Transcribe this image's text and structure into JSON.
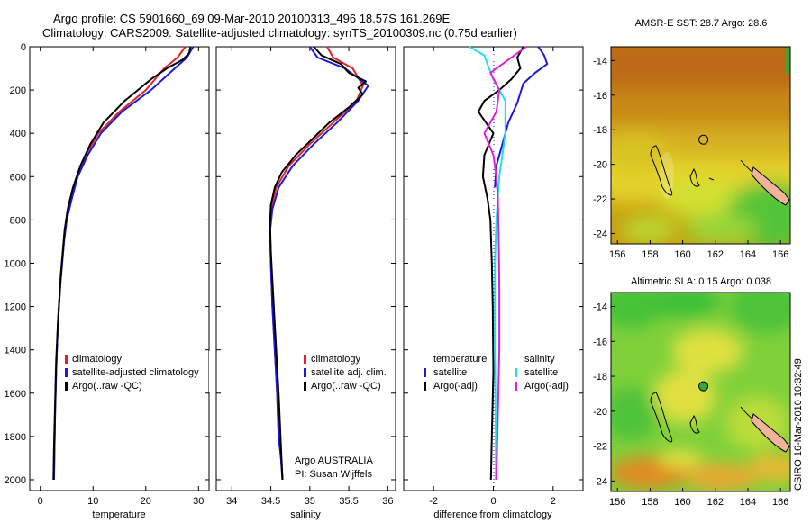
{
  "header": {
    "line1": "Argo profile: CS 5901660_69 09-Mar-2010 20100313_496 18.57S 161.269E",
    "line2": "Climatology: CARS2009. Satellite-adjusted climatology: synTS_20100309.nc (0.75d earlier)"
  },
  "side_label": "CSIRO 16-Mar-2010 10:32:49",
  "colors": {
    "climatology": "#e82020",
    "satellite": "#1a1adc",
    "argo": "#000000",
    "cyan": "#22e0e0",
    "magenta": "#e020e0"
  },
  "chart_data": [
    {
      "id": "temperature",
      "type": "line",
      "xlabel": "temperature",
      "ylabel": "",
      "title": "",
      "xlim": [
        -2,
        32
      ],
      "ylim": [
        2050,
        0
      ],
      "grid": false,
      "xticks": [
        0,
        10,
        20,
        30
      ],
      "xtick_labels": [
        "0",
        "10",
        "20",
        "30"
      ],
      "yticks": [
        0,
        200,
        400,
        600,
        800,
        1000,
        1200,
        1400,
        1600,
        1800,
        2000
      ],
      "ytick_labels": [
        "0",
        "200",
        "400",
        "600",
        "800",
        "1000",
        "1200",
        "1400",
        "1600",
        "1800",
        "2000"
      ],
      "legend": {
        "position": "lower-right",
        "entries": [
          "climatology",
          "satellite-adjusted climatology",
          "Argo(..raw -QC)"
        ]
      },
      "series": [
        {
          "name": "climatology",
          "color": "#e82020",
          "x": [
            27.5,
            26.0,
            23.5,
            20.0,
            15.0,
            11.0,
            8.6,
            7.0,
            6.0,
            5.0,
            4.5,
            3.8,
            3.3,
            3.0,
            2.8,
            2.6
          ],
          "y": [
            0,
            50,
            100,
            200,
            300,
            400,
            500,
            600,
            700,
            800,
            900,
            1100,
            1300,
            1500,
            1700,
            2000
          ]
        },
        {
          "name": "satellite-adjusted climatology",
          "color": "#1a1adc",
          "x": [
            29.0,
            27.8,
            25.5,
            21.0,
            15.5,
            11.5,
            9.0,
            7.1,
            6.0,
            5.0,
            4.5,
            3.8,
            3.3,
            3.0,
            2.8,
            2.6
          ],
          "y": [
            0,
            50,
            100,
            200,
            300,
            400,
            500,
            600,
            700,
            800,
            900,
            1100,
            1300,
            1500,
            1700,
            2000
          ]
        },
        {
          "name": "Argo(..raw -QC)",
          "color": "#000000",
          "x": [
            28.5,
            28.2,
            27.0,
            24.0,
            21.0,
            16.0,
            12.0,
            9.5,
            7.6,
            6.2,
            5.2,
            4.6,
            3.9,
            3.4,
            3.0,
            2.8,
            2.6,
            2.5
          ],
          "y": [
            0,
            30,
            60,
            100,
            150,
            250,
            350,
            450,
            550,
            650,
            750,
            850,
            1050,
            1250,
            1450,
            1650,
            1850,
            2000
          ]
        }
      ]
    },
    {
      "id": "salinity",
      "type": "line",
      "xlabel": "salinity",
      "ylabel": "",
      "title": "",
      "xlim": [
        33.8,
        36.1
      ],
      "ylim": [
        2050,
        0
      ],
      "grid": false,
      "xticks": [
        34,
        34.5,
        35,
        35.5,
        36
      ],
      "xtick_labels": [
        "34",
        "34.5",
        "35",
        "35.5",
        "36"
      ],
      "yticks": [
        0,
        200,
        400,
        600,
        800,
        1000,
        1200,
        1400,
        1600,
        1800,
        2000
      ],
      "legend": {
        "position": "lower-right",
        "entries": [
          "climatology",
          "satellite adj. clim.",
          "Argo(..raw -QC)"
        ]
      },
      "annotation": [
        "Argo AUSTRALIA",
        "PI: Susan Wijffels"
      ],
      "series": [
        {
          "name": "climatology",
          "color": "#e82020",
          "x": [
            35.22,
            35.3,
            35.55,
            35.68,
            35.6,
            35.3,
            35.0,
            34.73,
            34.57,
            34.5,
            34.49,
            34.5,
            34.52,
            34.55,
            34.58,
            34.6,
            34.63,
            34.65
          ],
          "y": [
            0,
            50,
            100,
            180,
            250,
            350,
            450,
            550,
            650,
            750,
            850,
            1000,
            1200,
            1400,
            1600,
            1800,
            1900,
            2000
          ]
        },
        {
          "name": "satellite adj. clim.",
          "color": "#1a1adc",
          "x": [
            35.0,
            35.1,
            35.45,
            35.75,
            35.62,
            35.35,
            35.05,
            34.78,
            34.6,
            34.52,
            34.49,
            34.5,
            34.52,
            34.55,
            34.58,
            34.6,
            34.63,
            34.65
          ],
          "y": [
            0,
            50,
            100,
            180,
            250,
            350,
            450,
            550,
            650,
            750,
            850,
            1000,
            1200,
            1400,
            1600,
            1800,
            1900,
            2000
          ]
        },
        {
          "name": "Argo(..raw -QC)",
          "color": "#000000",
          "x": [
            35.05,
            35.15,
            35.4,
            35.5,
            35.72,
            35.62,
            35.68,
            35.5,
            35.25,
            35.05,
            34.82,
            34.64,
            34.55,
            34.5,
            34.49,
            34.5,
            34.53,
            34.56,
            34.6,
            34.63,
            34.65
          ],
          "y": [
            0,
            40,
            80,
            120,
            160,
            190,
            220,
            280,
            350,
            420,
            500,
            580,
            650,
            730,
            820,
            950,
            1150,
            1350,
            1600,
            1850,
            2000
          ]
        }
      ]
    },
    {
      "id": "difference",
      "type": "line",
      "xlabel": "difference from climatology",
      "ylabel": "",
      "title": "",
      "xlim": [
        -3,
        3
      ],
      "ylim": [
        2050,
        0
      ],
      "grid": false,
      "xticks": [
        -2,
        0,
        2
      ],
      "xtick_labels": [
        "-2",
        "0",
        "2"
      ],
      "yticks": [
        0,
        200,
        400,
        600,
        800,
        1000,
        1200,
        1400,
        1600,
        1800,
        2000
      ],
      "legend": {
        "position": "lower-center",
        "temperature_title": "temperature",
        "salinity_title": "salinity",
        "temperature_entries": [
          "satellite",
          "Argo(-adj)"
        ],
        "salinity_entries": [
          "satellite",
          "Argo(-adj)"
        ]
      },
      "series": [
        {
          "name": "temperature satellite",
          "color": "#1a1adc",
          "x": [
            1.5,
            1.7,
            1.8,
            1.4,
            1.0,
            0.8,
            0.5,
            0.3,
            0.1,
            0.05
          ],
          "y": [
            0,
            40,
            80,
            120,
            170,
            260,
            350,
            450,
            550,
            650
          ]
        },
        {
          "name": "temperature Argo(-adj)",
          "color": "#000000",
          "x": [
            1.0,
            0.8,
            0.9,
            0.6,
            0.2,
            -0.3,
            -0.5,
            0.0,
            -0.3,
            -0.35,
            -0.2,
            -0.1,
            -0.05,
            -0.02,
            0.0,
            -0.05,
            -0.08
          ],
          "y": [
            0,
            50,
            100,
            150,
            200,
            250,
            300,
            400,
            500,
            600,
            700,
            800,
            1000,
            1200,
            1500,
            1800,
            2000
          ]
        },
        {
          "name": "salinity satellite",
          "color": "#22e0e0",
          "x": [
            -0.8,
            -0.3,
            -0.2,
            0.0,
            0.4,
            0.4,
            0.2,
            0.1,
            0.05,
            0.05,
            0.08,
            0.08
          ],
          "y": [
            0,
            40,
            80,
            150,
            250,
            400,
            600,
            800,
            1000,
            1400,
            1800,
            2000
          ]
        },
        {
          "name": "salinity Argo(-adj)",
          "color": "#e020e0",
          "x": [
            1.1,
            0.8,
            0.5,
            -0.1,
            0.2,
            0.1,
            -0.3,
            0.0,
            0.1,
            0.15,
            0.18,
            0.2,
            0.2,
            0.15,
            0.1
          ],
          "y": [
            0,
            30,
            60,
            120,
            200,
            300,
            400,
            500,
            600,
            700,
            900,
            1100,
            1400,
            1700,
            2000
          ]
        }
      ]
    }
  ],
  "maps": [
    {
      "id": "sst",
      "title": "AMSR-E SST: 28.7 Argo: 28.6",
      "xticks": [
        156,
        158,
        160,
        162,
        164,
        166
      ],
      "yticks": [
        -14,
        -16,
        -18,
        -20,
        -22,
        -24
      ],
      "marker": {
        "lon": 161.27,
        "lat": -18.57,
        "filled": false
      }
    },
    {
      "id": "sla",
      "title": "Altimetric SLA: 0.15 Argo: 0.038",
      "xticks": [
        156,
        158,
        160,
        162,
        164,
        166
      ],
      "yticks": [
        -14,
        -16,
        -18,
        -20,
        -22,
        -24
      ],
      "marker": {
        "lon": 161.27,
        "lat": -18.57,
        "filled": true
      }
    }
  ]
}
